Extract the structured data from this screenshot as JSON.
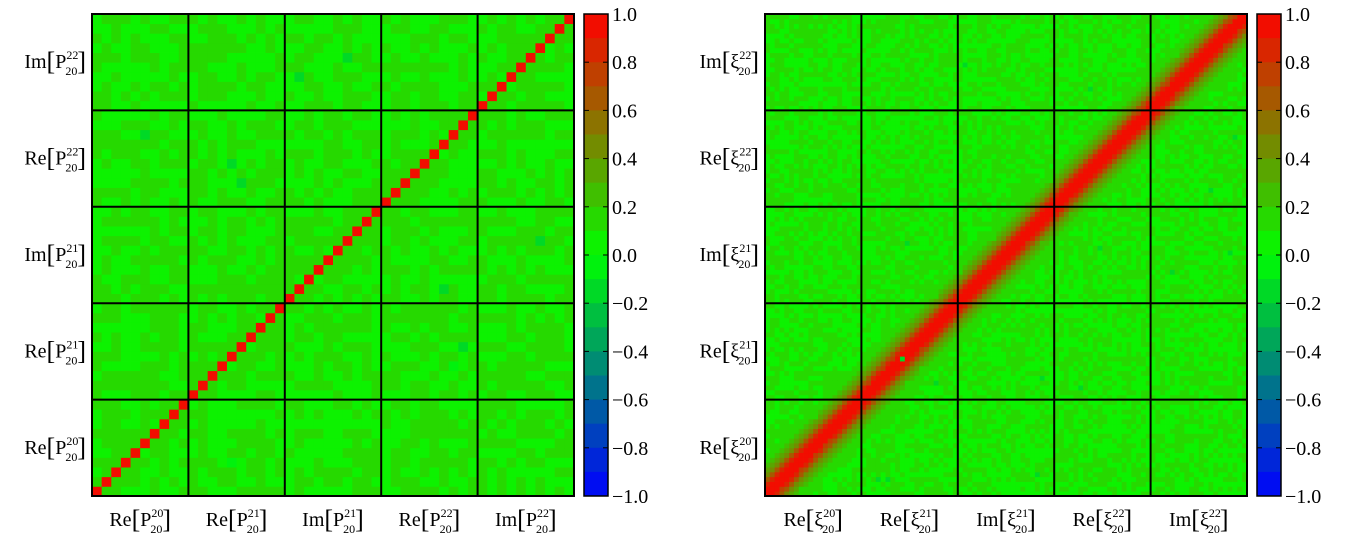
{
  "chart_data": [
    {
      "type": "heatmap",
      "id": "left",
      "pattern": "sharp",
      "block_labels_x": [
        {
          "pre": "Re",
          "base": "P",
          "sup": "20",
          "sub": "20"
        },
        {
          "pre": "Re",
          "base": "P",
          "sup": "21",
          "sub": "20"
        },
        {
          "pre": "Im",
          "base": "P",
          "sup": "21",
          "sub": "20"
        },
        {
          "pre": "Re",
          "base": "P",
          "sup": "22",
          "sub": "20"
        },
        {
          "pre": "Im",
          "base": "P",
          "sup": "22",
          "sub": "20"
        }
      ],
      "block_labels_y": [
        {
          "pre": "Re",
          "base": "P",
          "sup": "20",
          "sub": "20"
        },
        {
          "pre": "Re",
          "base": "P",
          "sup": "21",
          "sub": "20"
        },
        {
          "pre": "Im",
          "base": "P",
          "sup": "21",
          "sub": "20"
        },
        {
          "pre": "Re",
          "base": "P",
          "sup": "22",
          "sub": "20"
        },
        {
          "pre": "Im",
          "base": "P",
          "sup": "22",
          "sub": "20"
        }
      ],
      "n_blocks": 5,
      "cells_per_block": 10,
      "diagonal_value": 1.0,
      "off_diagonal_value": 0.1,
      "value_range": [
        -1.0,
        1.0
      ]
    },
    {
      "type": "heatmap",
      "id": "right",
      "pattern": "smooth",
      "block_labels_x": [
        {
          "pre": "Re",
          "base": "ξ",
          "sup": "20",
          "sub": "20"
        },
        {
          "pre": "Re",
          "base": "ξ",
          "sup": "21",
          "sub": "20"
        },
        {
          "pre": "Im",
          "base": "ξ",
          "sup": "21",
          "sub": "20"
        },
        {
          "pre": "Re",
          "base": "ξ",
          "sup": "22",
          "sub": "20"
        },
        {
          "pre": "Im",
          "base": "ξ",
          "sup": "22",
          "sub": "20"
        }
      ],
      "block_labels_y": [
        {
          "pre": "Re",
          "base": "ξ",
          "sup": "20",
          "sub": "20"
        },
        {
          "pre": "Re",
          "base": "ξ",
          "sup": "21",
          "sub": "20"
        },
        {
          "pre": "Im",
          "base": "ξ",
          "sup": "21",
          "sub": "20"
        },
        {
          "pre": "Re",
          "base": "ξ",
          "sup": "22",
          "sub": "20"
        },
        {
          "pre": "Im",
          "base": "ξ",
          "sup": "22",
          "sub": "20"
        }
      ],
      "n_blocks": 5,
      "cells_per_block": 20,
      "diagonal_value": 1.0,
      "off_diagonal_value": 0.1,
      "value_range": [
        -1.0,
        1.0
      ]
    }
  ],
  "colorbar": {
    "ticks": [
      "1.0",
      "0.8",
      "0.6",
      "0.4",
      "0.2",
      "0.0",
      "−0.2",
      "−0.4",
      "−0.6",
      "−0.8",
      "−1.0"
    ],
    "tick_values": [
      1.0,
      0.8,
      0.6,
      0.4,
      0.2,
      0.0,
      -0.2,
      -0.4,
      -0.6,
      -0.8,
      -1.0
    ],
    "levels": 20,
    "colors": {
      "low": "#0000ff",
      "mid": "#00ff00",
      "high": "#ff0000"
    }
  }
}
